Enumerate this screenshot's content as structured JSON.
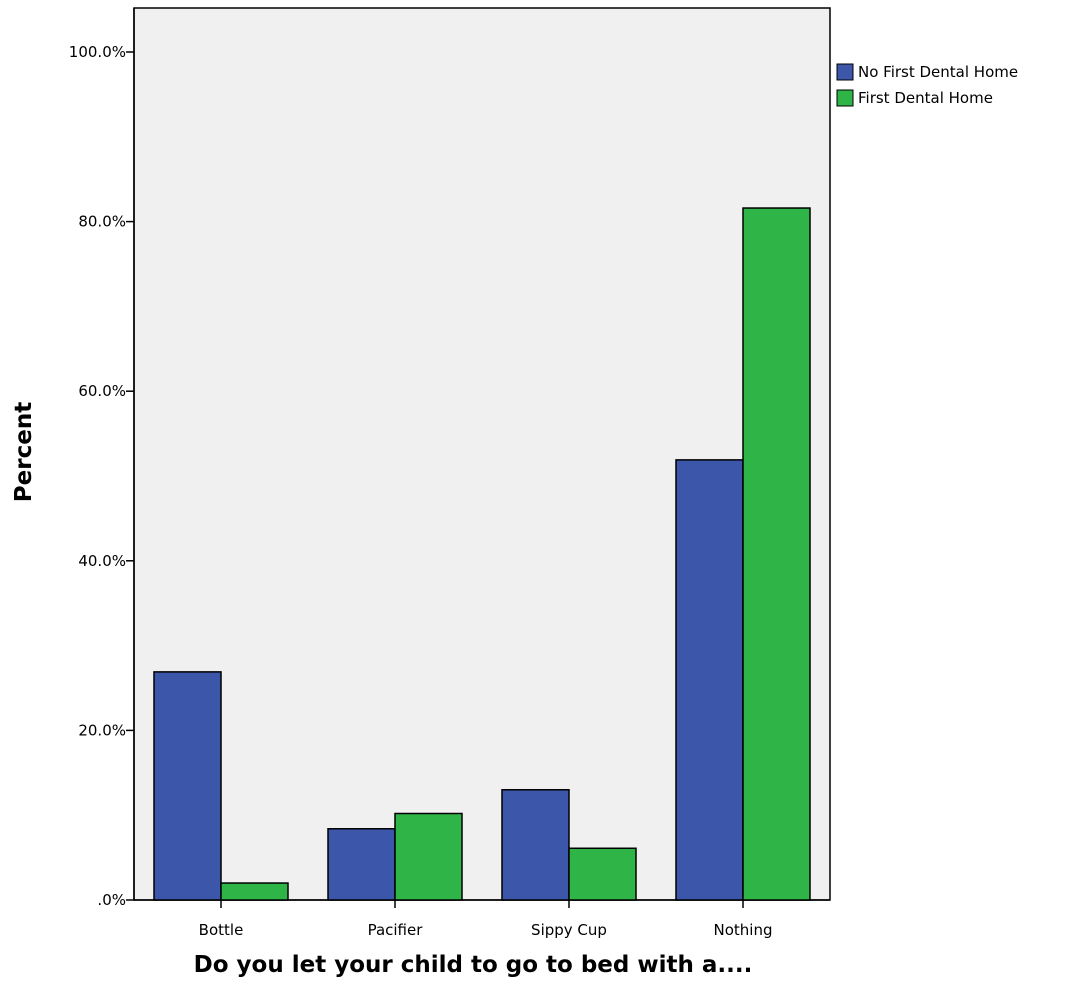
{
  "chart_data": {
    "type": "bar",
    "categories": [
      "Bottle",
      "Pacifier",
      "Sippy Cup",
      "Nothing"
    ],
    "series": [
      {
        "name": "No First Dental Home",
        "color": "#3c56a9",
        "values": [
          26.9,
          8.4,
          13.0,
          51.9
        ]
      },
      {
        "name": "First Dental Home",
        "color": "#2fb547",
        "values": [
          2.0,
          10.2,
          6.1,
          81.6
        ]
      }
    ],
    "xlabel": "Do you let your child to go to bed with a....",
    "ylabel": "Percent",
    "ylim": [
      0,
      100
    ],
    "yticks": [
      0,
      20,
      40,
      60,
      80,
      100
    ],
    "ytick_labels": [
      ".0%",
      "20.0%",
      "40.0%",
      "60.0%",
      "80.0%",
      "100.0%"
    ],
    "grid": false,
    "legend_position": "top-right",
    "plot_background": "#f0f0f0"
  }
}
